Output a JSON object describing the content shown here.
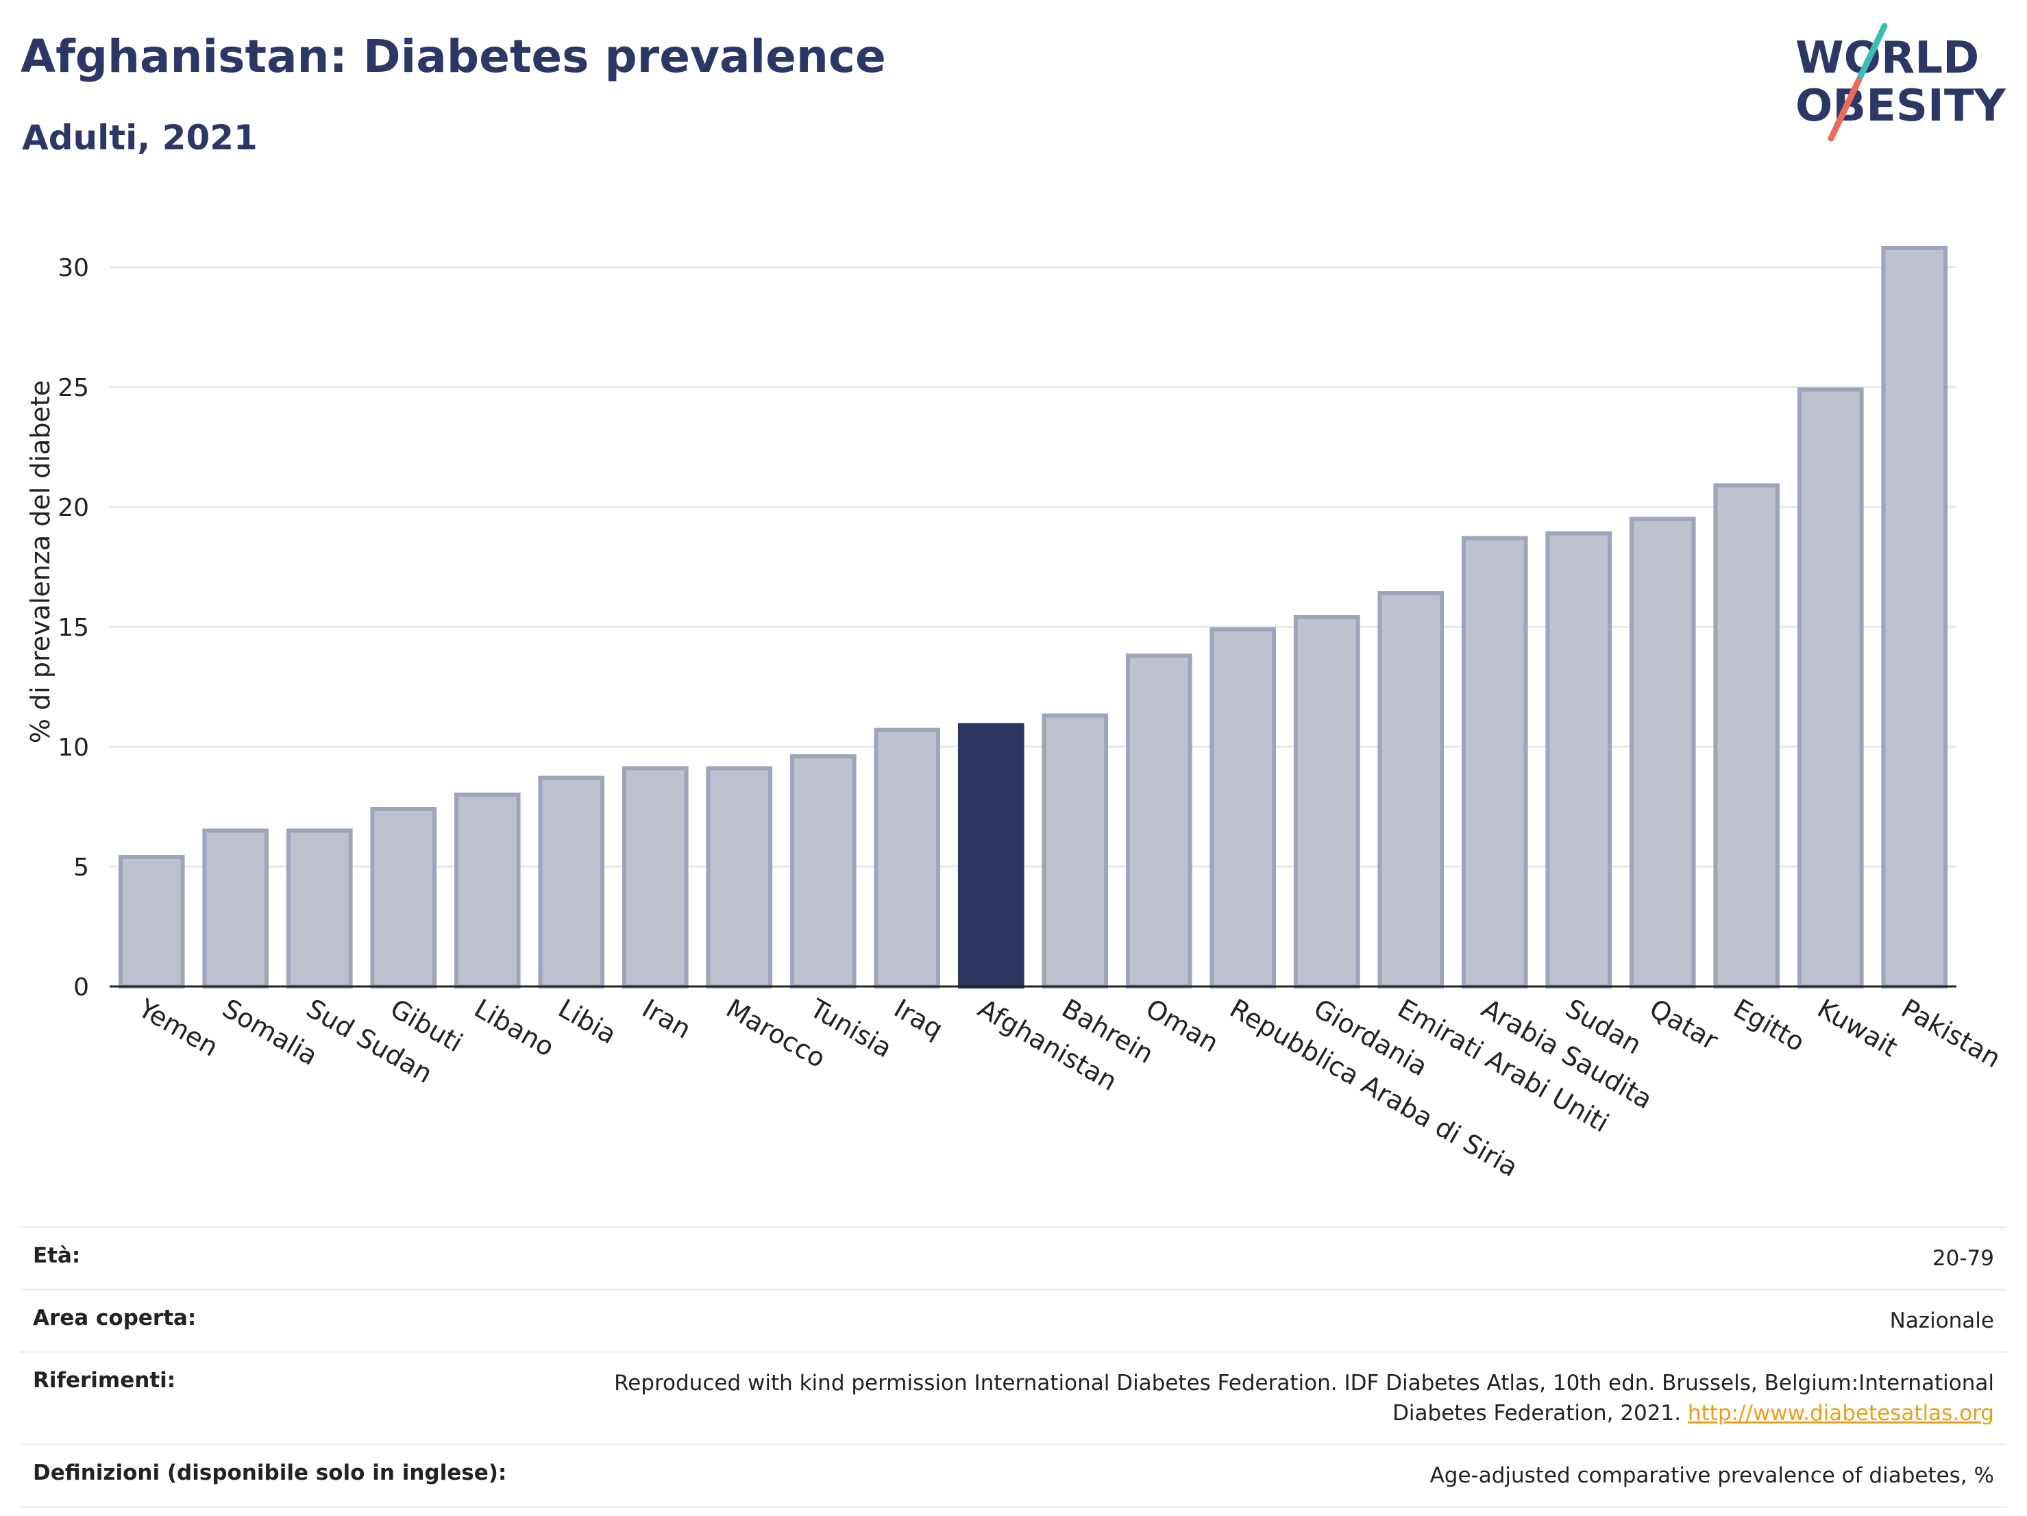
{
  "header": {
    "title": "Afghanistan: Diabetes prevalence",
    "subtitle": "Adulti, 2021"
  },
  "logo": {
    "line1": "WORLD",
    "line2": "OBESITY",
    "colors": {
      "text": "#2d3765",
      "slash_top": "#3fbcb5",
      "slash_bottom": "#ec6a5c"
    }
  },
  "colors": {
    "bar_fill": "#bec2cf",
    "bar_stroke": "#9ea4ba",
    "highlight_fill": "#2a3560",
    "grid": "#e6e8ee",
    "axis": "#222222"
  },
  "chart_data": {
    "type": "bar",
    "title": "Afghanistan: Diabetes prevalence",
    "subtitle": "Adulti, 2021",
    "xlabel": "",
    "ylabel": "% di prevalenza del diabete",
    "ylim": [
      0,
      32
    ],
    "yticks": [
      0,
      5,
      10,
      15,
      20,
      25,
      30
    ],
    "grid": true,
    "highlight": "Afghanistan",
    "categories": [
      "Yemen",
      "Somalia",
      "Sud Sudan",
      "Gibuti",
      "Libano",
      "Libia",
      "Iran",
      "Marocco",
      "Tunisia",
      "Iraq",
      "Afghanistan",
      "Bahrein",
      "Oman",
      "Repubblica Araba di Siria",
      "Giordania",
      "Emirati Arabi Uniti",
      "Arabia Saudita",
      "Sudan",
      "Qatar",
      "Egitto",
      "Kuwait",
      "Pakistan"
    ],
    "values": [
      5.4,
      6.5,
      6.5,
      7.4,
      8.0,
      8.7,
      9.1,
      9.1,
      9.6,
      10.7,
      10.9,
      11.3,
      13.8,
      14.9,
      15.4,
      16.4,
      18.7,
      18.9,
      19.5,
      20.9,
      24.9,
      30.8
    ]
  },
  "info": {
    "age_label": "Età:",
    "age_value": "20-79",
    "area_label": "Area coperta:",
    "area_value": "Nazionale",
    "ref_label": "Riferimenti:",
    "ref_text": "Reproduced with kind permission International Diabetes Federation.  IDF Diabetes Atlas, 10th edn. Brussels, Belgium:International Diabetes Federation, 2021. ",
    "ref_link": "http://www.diabetesatlas.org",
    "def_label": "Definizioni (disponibile solo in inglese):",
    "def_value": "Age-adjusted comparative prevalence of diabetes, %"
  }
}
